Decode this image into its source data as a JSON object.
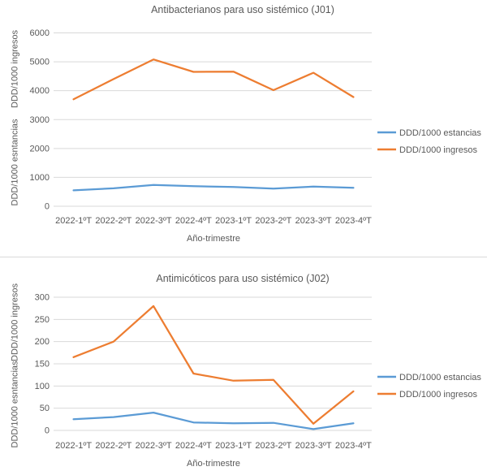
{
  "divider": {
    "color": "#d9d9d9"
  },
  "chart_data": [
    {
      "type": "line",
      "title": "Antibacterianos para uso sistémico (J01)",
      "xlabel": "Año-trimestre",
      "ylabel_upper": "DDD/1000 ingresos",
      "ylabel_lower": "DDD/1000 esntancias",
      "categories": [
        "2022-1ºT",
        "2022-2ºT",
        "2022-3ºT",
        "2022-4ºT",
        "2023-1ºT",
        "2023-2ºT",
        "2023-3ºT",
        "2023-4ºT"
      ],
      "series": [
        {
          "name": "DDD/1000 estancias",
          "color": "#5B9BD5",
          "values": [
            550,
            620,
            740,
            695,
            665,
            610,
            680,
            640
          ]
        },
        {
          "name": "DDD/1000 ingresos",
          "color": "#ED7D31",
          "values": [
            3700,
            4400,
            5080,
            4650,
            4660,
            4020,
            4620,
            3780
          ]
        }
      ],
      "ylim": [
        0,
        6000
      ],
      "ytick_step": 1000,
      "grid": true,
      "legend_position": "right"
    },
    {
      "type": "line",
      "title": "Antimicóticos para uso sistémico (J02)",
      "xlabel": "Año-trimestre",
      "ylabel_upper": "DDD/1000 ingresos",
      "ylabel_lower": "DDD/1000 esntancias",
      "categories": [
        "2022-1ºT",
        "2022-2ºT",
        "2022-3ºT",
        "2022-4ºT",
        "2023-1ºT",
        "2023-2ºT",
        "2023-3ºT",
        "2023-4ºT"
      ],
      "series": [
        {
          "name": "DDD/1000 estancias",
          "color": "#5B9BD5",
          "values": [
            25,
            30,
            40,
            18,
            16,
            17,
            3,
            16
          ]
        },
        {
          "name": "DDD/1000 ingresos",
          "color": "#ED7D31",
          "values": [
            165,
            200,
            280,
            128,
            112,
            114,
            15,
            88
          ]
        }
      ],
      "ylim": [
        0,
        300
      ],
      "ytick_step": 50,
      "grid": true,
      "legend_position": "right"
    }
  ]
}
